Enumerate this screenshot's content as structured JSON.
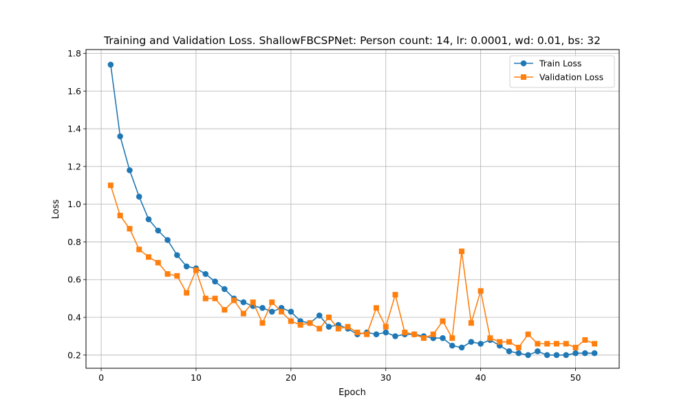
{
  "chart_data": {
    "type": "line",
    "title": "Training and Validation Loss. ShallowFBCSPNet: Person count: 14, lr: 0.0001, wd: 0.01, bs: 32",
    "xlabel": "Epoch",
    "ylabel": "Loss",
    "xlim": [
      -1.6,
      54.6
    ],
    "ylim": [
      0.13,
      1.82
    ],
    "xticks": [
      0,
      10,
      20,
      30,
      40,
      50
    ],
    "yticks": [
      0.2,
      0.4,
      0.6,
      0.8,
      1.0,
      1.2,
      1.4,
      1.6,
      1.8
    ],
    "grid": true,
    "legend_position": "top-right",
    "x": [
      1,
      2,
      3,
      4,
      5,
      6,
      7,
      8,
      9,
      10,
      11,
      12,
      13,
      14,
      15,
      16,
      17,
      18,
      19,
      20,
      21,
      22,
      23,
      24,
      25,
      26,
      27,
      28,
      29,
      30,
      31,
      32,
      33,
      34,
      35,
      36,
      37,
      38,
      39,
      40,
      41,
      42,
      43,
      44,
      45,
      46,
      47,
      48,
      49,
      50,
      51,
      52
    ],
    "series": [
      {
        "name": "Train Loss",
        "color": "#1f77b4",
        "marker": "circle",
        "values": [
          1.74,
          1.36,
          1.18,
          1.04,
          0.92,
          0.86,
          0.81,
          0.73,
          0.67,
          0.66,
          0.63,
          0.59,
          0.55,
          0.5,
          0.48,
          0.46,
          0.45,
          0.43,
          0.45,
          0.43,
          0.38,
          0.37,
          0.41,
          0.35,
          0.36,
          0.34,
          0.31,
          0.32,
          0.31,
          0.32,
          0.3,
          0.31,
          0.31,
          0.3,
          0.29,
          0.29,
          0.25,
          0.24,
          0.27,
          0.26,
          0.28,
          0.25,
          0.22,
          0.21,
          0.2,
          0.22,
          0.2,
          0.2,
          0.2,
          0.21,
          0.21,
          0.21
        ]
      },
      {
        "name": "Validation Loss",
        "color": "#ff7f0e",
        "marker": "square",
        "values": [
          1.1,
          0.94,
          0.87,
          0.76,
          0.72,
          0.69,
          0.63,
          0.62,
          0.53,
          0.65,
          0.5,
          0.5,
          0.44,
          0.49,
          0.42,
          0.48,
          0.37,
          0.48,
          0.43,
          0.38,
          0.36,
          0.37,
          0.34,
          0.4,
          0.34,
          0.35,
          0.32,
          0.31,
          0.45,
          0.35,
          0.52,
          0.32,
          0.31,
          0.29,
          0.31,
          0.38,
          0.29,
          0.75,
          0.37,
          0.54,
          0.29,
          0.27,
          0.27,
          0.24,
          0.31,
          0.26,
          0.26,
          0.26,
          0.26,
          0.24,
          0.28,
          0.26
        ]
      }
    ]
  }
}
